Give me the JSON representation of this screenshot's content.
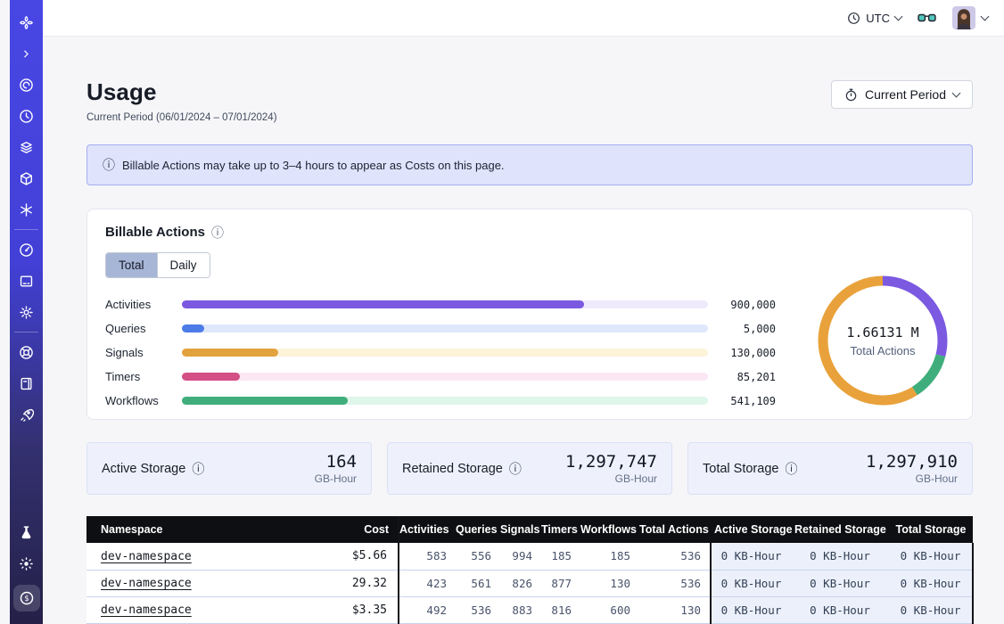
{
  "topbar": {
    "timezone_label": "UTC"
  },
  "sidebar": {
    "icons": [
      "temporal-logo",
      "collapse-chevron",
      "namespaces",
      "schedules",
      "deployments",
      "packages",
      "nexus",
      "usage",
      "terminal",
      "settings",
      "support",
      "docs",
      "getting-started",
      "labs",
      "theme-toggle",
      "billing"
    ],
    "active_item": "billing"
  },
  "page": {
    "title": "Usage",
    "subtitle": "Current Period (06/01/2024 – 07/01/2024)",
    "period_button_label": "Current Period"
  },
  "banner": {
    "text": "Billable Actions may take up to 3–4 hours to appear as Costs on this page."
  },
  "billable": {
    "title": "Billable Actions",
    "tabs": [
      {
        "label": "Total"
      },
      {
        "label": "Daily"
      }
    ],
    "active_tab": "Total",
    "chart_data": {
      "type": "bar",
      "orientation": "horizontal",
      "categories": [
        "Activities",
        "Queries",
        "Signals",
        "Timers",
        "Workflows"
      ],
      "values": [
        900000,
        5000,
        130000,
        85201,
        541109
      ],
      "value_labels": [
        "900,000",
        "5,000",
        "130,000",
        "85,201",
        "541,109"
      ],
      "fill_pct": [
        76.5,
        4.2,
        18.3,
        11,
        31.5
      ],
      "bar_colors": [
        "#7B59E0",
        "#4D7CE8",
        "#E2A23E",
        "#D34F86",
        "#3FAE7C"
      ],
      "track_colors": [
        "#EFE9FC",
        "#DFE8FB",
        "#FCF3D9",
        "#FBE7F3",
        "#DFF6EA"
      ]
    },
    "donut": {
      "type": "pie",
      "center_value": "1.66131 M",
      "center_label": "Total Actions",
      "segments": [
        {
          "color": "#7B59E0",
          "pct": 29
        },
        {
          "color": "#3FAE7C",
          "pct": 12
        },
        {
          "color": "#E9A23B",
          "pct": 59
        }
      ]
    }
  },
  "storage_cards": [
    {
      "label": "Active Storage",
      "value": "164",
      "unit": "GB-Hour"
    },
    {
      "label": "Retained Storage",
      "value": "1,297,747",
      "unit": "GB-Hour"
    },
    {
      "label": "Total Storage",
      "value": "1,297,910",
      "unit": "GB-Hour"
    }
  ],
  "table": {
    "columns": [
      "Namespace",
      "Cost",
      "Activities",
      "Queries",
      "Signals",
      "Timers",
      "Workflows",
      "Total Actions",
      "Active Storage",
      "Retained Storage",
      "Total Storage"
    ],
    "rows": [
      {
        "namespace": "dev-namespace",
        "cost": "$5.66",
        "activities": "583",
        "queries": "556",
        "signals": "994",
        "timers": "185",
        "workflows": "185",
        "total_actions": "536",
        "active_storage": "0 KB-Hour",
        "retained_storage": "0 KB-Hour",
        "total_storage": "0 KB-Hour"
      },
      {
        "namespace": "dev-namespace",
        "cost": "29.32",
        "activities": "423",
        "queries": "561",
        "signals": "826",
        "timers": "877",
        "workflows": "130",
        "total_actions": "536",
        "active_storage": "0 KB-Hour",
        "retained_storage": "0 KB-Hour",
        "total_storage": "0 KB-Hour"
      },
      {
        "namespace": "dev-namespace",
        "cost": "$3.35",
        "activities": "492",
        "queries": "536",
        "signals": "883",
        "timers": "816",
        "workflows": "600",
        "total_actions": "130",
        "active_storage": "0 KB-Hour",
        "retained_storage": "0 KB-Hour",
        "total_storage": "0 KB-Hour"
      }
    ]
  }
}
